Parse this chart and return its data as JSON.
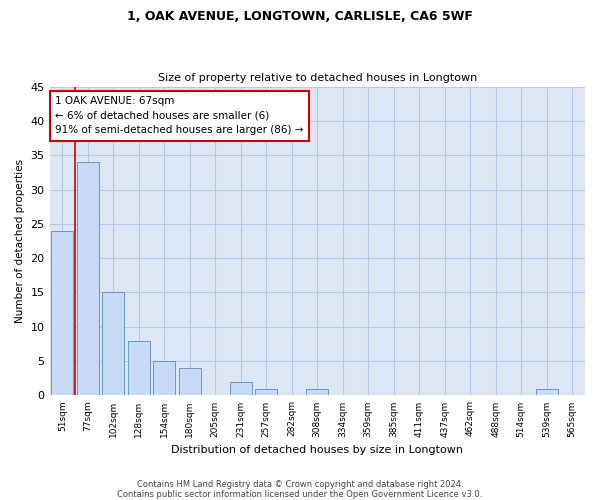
{
  "title1": "1, OAK AVENUE, LONGTOWN, CARLISLE, CA6 5WF",
  "title2": "Size of property relative to detached houses in Longtown",
  "xlabel": "Distribution of detached houses by size in Longtown",
  "ylabel": "Number of detached properties",
  "categories": [
    "51sqm",
    "77sqm",
    "102sqm",
    "128sqm",
    "154sqm",
    "180sqm",
    "205sqm",
    "231sqm",
    "257sqm",
    "282sqm",
    "308sqm",
    "334sqm",
    "359sqm",
    "385sqm",
    "411sqm",
    "437sqm",
    "462sqm",
    "488sqm",
    "514sqm",
    "539sqm",
    "565sqm"
  ],
  "values": [
    24,
    34,
    15,
    8,
    5,
    4,
    0,
    2,
    1,
    0,
    1,
    0,
    0,
    0,
    0,
    0,
    0,
    0,
    0,
    1,
    0
  ],
  "bar_color": "#c9daf8",
  "bar_edge_color": "#6699cc",
  "property_line_color": "#cc0000",
  "annotation_text": "1 OAK AVENUE: 67sqm\n← 6% of detached houses are smaller (6)\n91% of semi-detached houses are larger (86) →",
  "annotation_box_color": "#ffffff",
  "annotation_box_edge": "#cc0000",
  "ylim": [
    0,
    45
  ],
  "yticks": [
    0,
    5,
    10,
    15,
    20,
    25,
    30,
    35,
    40,
    45
  ],
  "footer1": "Contains HM Land Registry data © Crown copyright and database right 2024.",
  "footer2": "Contains public sector information licensed under the Open Government Licence v3.0.",
  "background_color": "#ffffff",
  "plot_bg_color": "#dce6f5",
  "grid_color": "#b8c8e8"
}
